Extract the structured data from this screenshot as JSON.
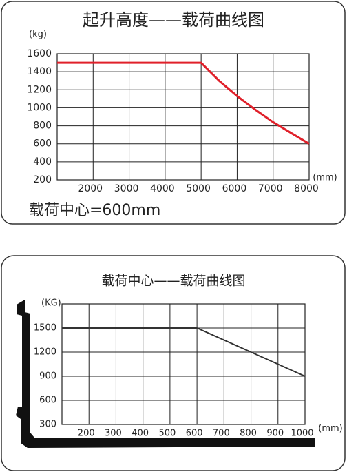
{
  "chart_data": [
    {
      "type": "line",
      "title": "起升高度——载荷曲线图",
      "y_label": "(kg)",
      "x_label": "(mm)",
      "annotation": "载荷中心=600mm",
      "x": [
        1000,
        5000,
        5500,
        6000,
        6500,
        7000,
        7500,
        8000
      ],
      "series": [
        {
          "color": "#e0202a",
          "values": [
            1500,
            1500,
            1300,
            1130,
            980,
            840,
            720,
            600
          ]
        }
      ],
      "xlim": [
        1000,
        8000
      ],
      "xticks": [
        2000,
        3000,
        4000,
        5000,
        6000,
        7000,
        8000
      ],
      "ylim": [
        200,
        1600
      ],
      "yticks": [
        200,
        400,
        600,
        800,
        1000,
        1200,
        1400,
        1600
      ],
      "grid": true
    },
    {
      "type": "line",
      "title": "载荷中心——载荷曲线图",
      "y_label": "(KG)",
      "x_label": "(mm)",
      "x": [
        100,
        600,
        1000
      ],
      "series": [
        {
          "color": "#333333",
          "values": [
            1500,
            1500,
            900
          ]
        }
      ],
      "xlim": [
        100,
        1000
      ],
      "xticks": [
        200,
        300,
        400,
        500,
        600,
        700,
        800,
        900,
        1000
      ],
      "ylim": [
        300,
        1800
      ],
      "yticks": [
        300,
        600,
        900,
        1200,
        1500
      ],
      "grid": true
    }
  ]
}
